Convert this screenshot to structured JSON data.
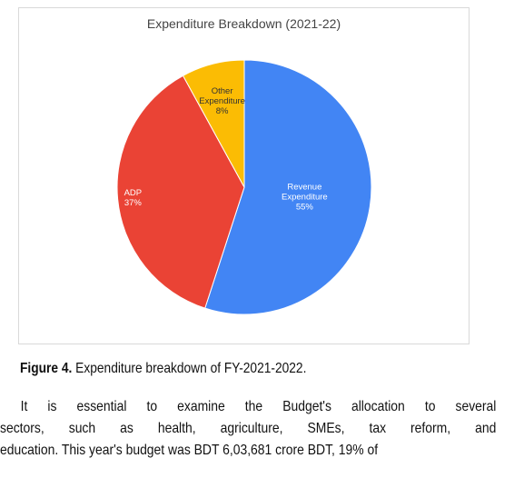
{
  "chart_data": {
    "type": "pie",
    "title": "Expenditure Breakdown (2021-22)",
    "slices": [
      {
        "label_lines": [
          "Revenue",
          "Expenditure"
        ],
        "pct_label": "55%",
        "value": 55,
        "color": "#4285f4"
      },
      {
        "label_lines": [
          "ADP"
        ],
        "pct_label": "37%",
        "value": 37,
        "color": "#ea4335"
      },
      {
        "label_lines": [
          "Other",
          "Expenditure"
        ],
        "pct_label": "8%",
        "value": 8,
        "color": "#fbbc04"
      }
    ]
  },
  "caption": {
    "label": "Figure 4.",
    "text": " Expenditure breakdown of FY-2021-2022."
  },
  "paragraph": {
    "lines": [
      "It is essential to examine the Budget's allocation to several",
      "sectors, such as health, agriculture, SMEs, tax reform, and",
      "education. This year's budget was BDT 6,03,681 crore BDT, 19% of"
    ]
  }
}
